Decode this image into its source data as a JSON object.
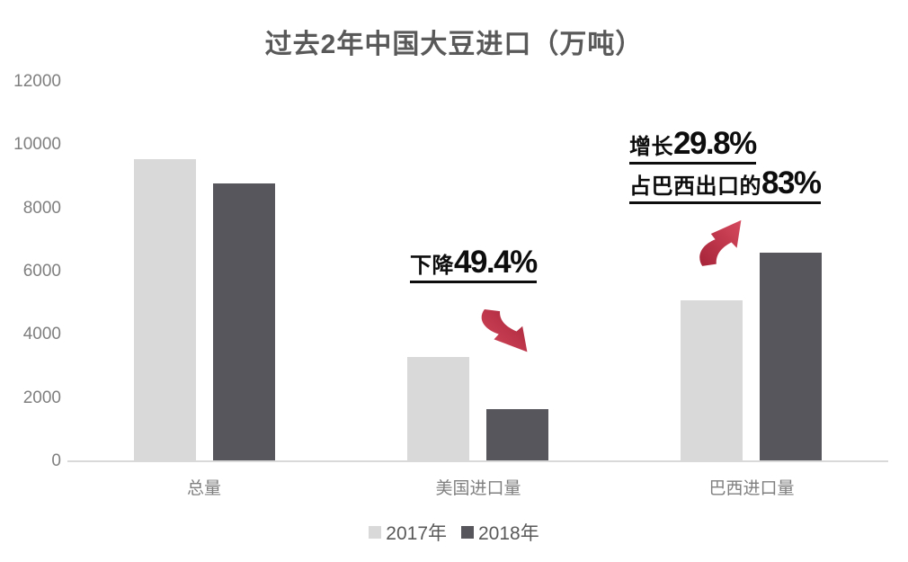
{
  "title": "过去2年中国大豆进口（万吨）",
  "chart_data": {
    "type": "bar",
    "title": "过去2年中国大豆进口（万吨）",
    "categories": [
      "总量",
      "美国进口量",
      "巴西进口量"
    ],
    "series": [
      {
        "name": "2017年",
        "color": "#d9d9d9",
        "values": [
          9550,
          3290,
          5090
        ]
      },
      {
        "name": "2018年",
        "color": "#57565c",
        "values": [
          8800,
          1660,
          6610
        ]
      }
    ],
    "xlabel": "",
    "ylabel": "",
    "ylim": [
      0,
      12000
    ],
    "ytick_step": 2000,
    "grid": false,
    "legend_position": "bottom",
    "annotations": [
      {
        "target": "美国进口量",
        "prefix": "下降",
        "value": "49.4%",
        "direction": "down"
      },
      {
        "target": "巴西进口量",
        "prefix": "增长",
        "value": "29.8%",
        "direction": "up"
      },
      {
        "target": "巴西进口量",
        "prefix": "占巴西出口的",
        "value": "83%",
        "direction": "none"
      }
    ]
  },
  "legend": {
    "items": [
      {
        "label": "2017年",
        "color": "#d9d9d9"
      },
      {
        "label": "2018年",
        "color": "#57565c"
      }
    ]
  },
  "colors": {
    "bar_2017": "#d9d9d9",
    "bar_2018": "#57565c",
    "arrow_red": "#c23249",
    "title_text": "#595959",
    "axis_text": "#7f7f7f",
    "axis_line": "#d9d9d9",
    "annotation_text": "#0d0d0d",
    "background": "#ffffff"
  }
}
